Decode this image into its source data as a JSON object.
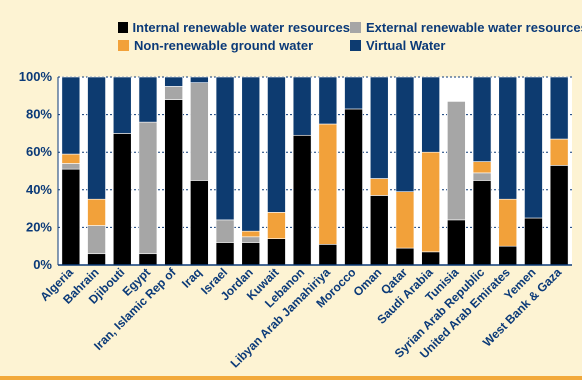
{
  "chart_data": {
    "type": "bar",
    "stacked": true,
    "categories": [
      "Algeria",
      "Bahrain",
      "Djibouti",
      "Egypt",
      "Iran, Islamic Rep of",
      "Iraq",
      "Israel",
      "Jordan",
      "Kuwait",
      "Lebanon",
      "Libyan Arab Jamahiriya",
      "Morocco",
      "Oman",
      "Qatar",
      "Saudi Arabia",
      "Tunisia",
      "Syrian Arab Republic",
      "United Arab Emirates",
      "Yemen",
      "West Bank & Gaza"
    ],
    "series": [
      {
        "name": "Internal renewable water resources",
        "color": "#000000",
        "values": [
          51,
          6,
          70,
          6,
          88,
          45,
          12,
          12,
          14,
          69,
          11,
          83,
          37,
          9,
          7,
          24,
          45,
          10,
          25,
          53
        ]
      },
      {
        "name": "External renewable water resources",
        "color": "#a6a6a6",
        "values": [
          3,
          15,
          0,
          70,
          7,
          52,
          12,
          3,
          0,
          0,
          0,
          0,
          0,
          0,
          0,
          63,
          4,
          0,
          0,
          0
        ]
      },
      {
        "name": "Non-renewable ground water",
        "color": "#f2a13a",
        "values": [
          5,
          14,
          0,
          0,
          0,
          0,
          0,
          3,
          14,
          0,
          64,
          0,
          9,
          30,
          53,
          0,
          6,
          25,
          0,
          14
        ]
      },
      {
        "name": "Virtual Water",
        "color": "#0d3b70",
        "values": [
          41,
          65,
          30,
          24,
          5,
          3,
          76,
          82,
          72,
          31,
          25,
          17,
          54,
          61,
          40,
          0,
          45,
          65,
          75,
          33
        ]
      }
    ],
    "ylim": [
      0,
      100
    ],
    "yticks": [
      "0%",
      "20%",
      "40%",
      "60%",
      "80%",
      "100%"
    ],
    "gridlines": true,
    "legend_position": "top"
  }
}
